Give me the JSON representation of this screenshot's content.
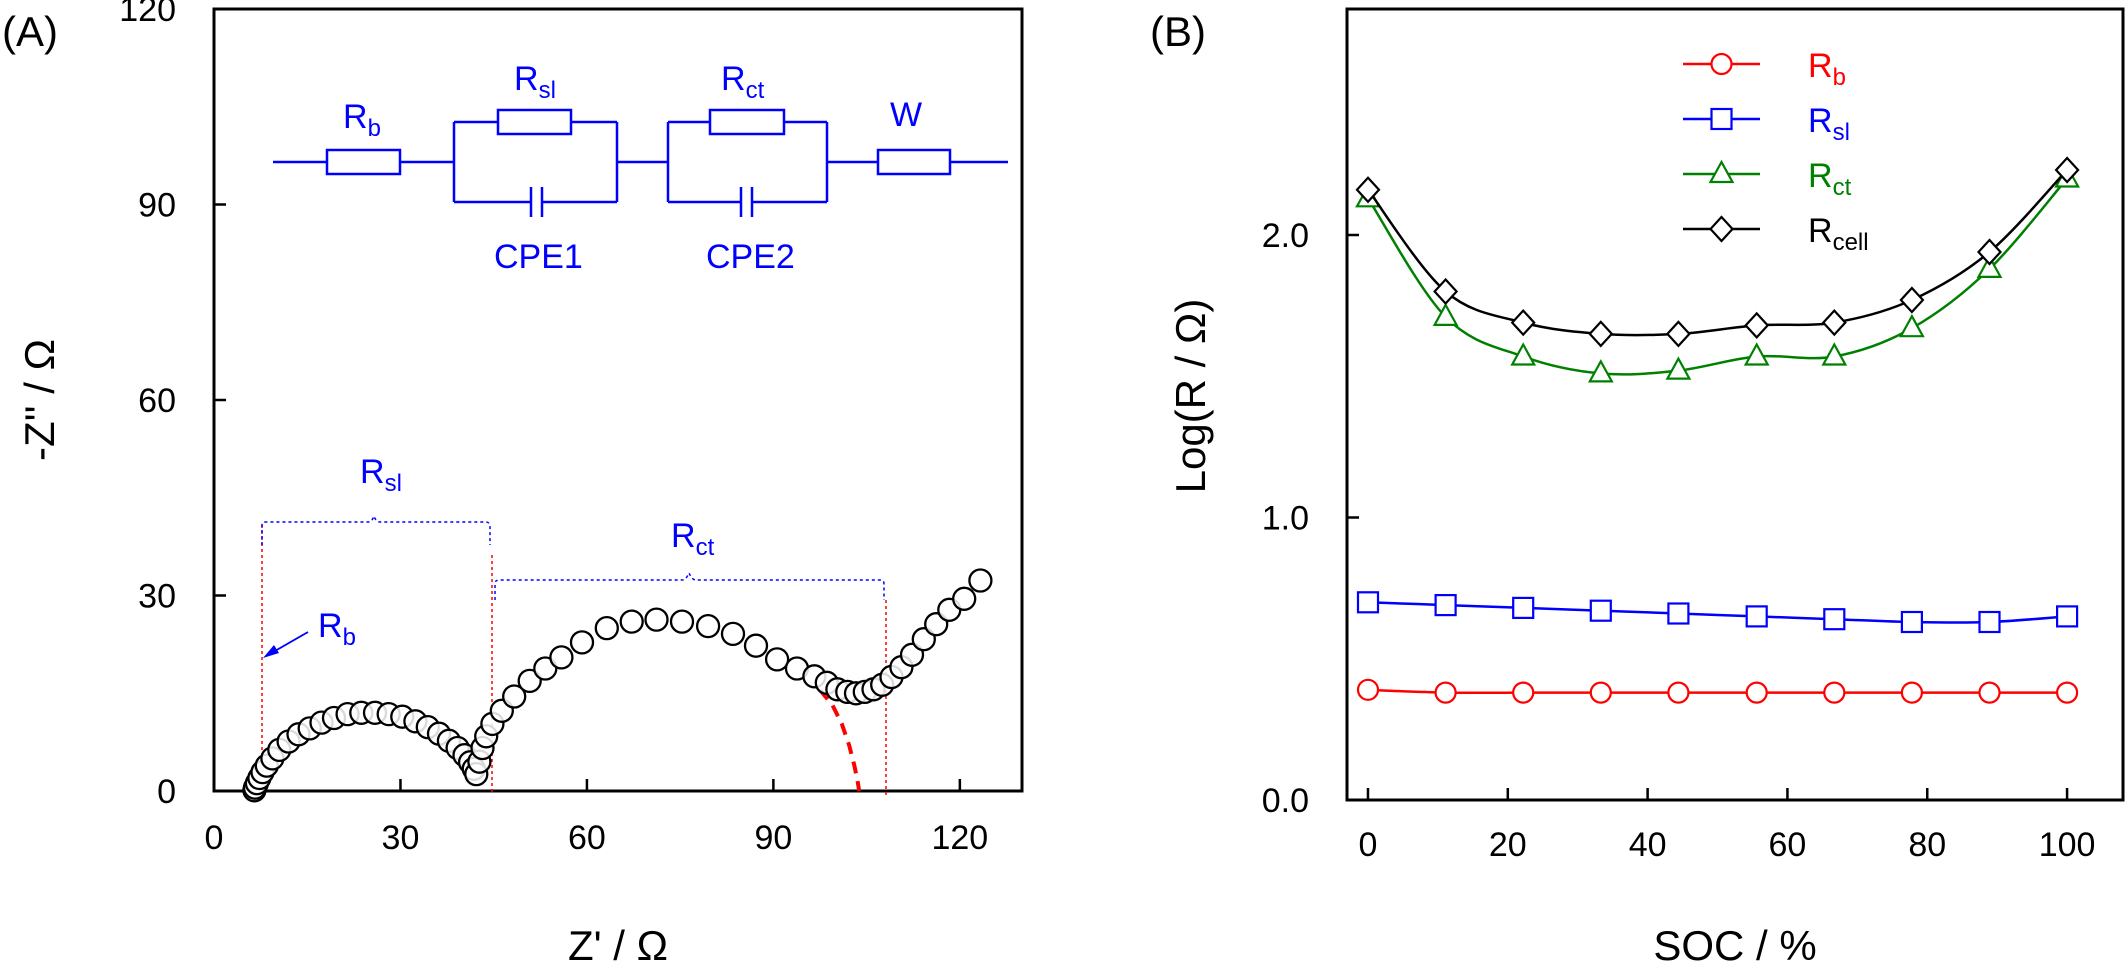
{
  "panels": [
    {
      "label": "(A)"
    },
    {
      "label": "(B)"
    }
  ],
  "colors": {
    "black": "#000000",
    "red": "#ff0000",
    "blue": "#0000ff",
    "green": "#008000",
    "marker_fill": "#ffffff"
  },
  "circuit": {
    "elements": [
      {
        "base": "R",
        "sub": "b"
      },
      {
        "base": "R",
        "sub": "sl"
      },
      {
        "base": "R",
        "sub": "ct"
      },
      {
        "base": "W",
        "sub": ""
      }
    ],
    "cpe1": "CPE1",
    "cpe2": "CPE2"
  },
  "annotations": {
    "rsl": {
      "base": "R",
      "sub": "sl"
    },
    "rct": {
      "base": "R",
      "sub": "ct"
    },
    "rb": {
      "base": "R",
      "sub": "b"
    }
  },
  "chart_data": [
    {
      "type": "scatter",
      "xlabel": "Z' / Ω",
      "ylabel": "-Z'' / Ω",
      "xlim": [
        0,
        130
      ],
      "ylim": [
        0,
        120
      ],
      "xticks": [
        0,
        30,
        60,
        90,
        120
      ],
      "yticks": [
        0,
        30,
        60,
        90,
        120
      ],
      "grid": false,
      "series": [
        {
          "marker": "open-circle",
          "color": "#000000",
          "points": [
            [
              6.5,
              0.1
            ],
            [
              6.6,
              0.5
            ],
            [
              6.9,
              1.2
            ],
            [
              7.3,
              2.0
            ],
            [
              7.8,
              2.9
            ],
            [
              8.5,
              3.9
            ],
            [
              9.4,
              5.0
            ],
            [
              10.5,
              6.3
            ],
            [
              12.0,
              7.6
            ],
            [
              13.6,
              8.7
            ],
            [
              15.4,
              9.6
            ],
            [
              17.3,
              10.5
            ],
            [
              19.3,
              11.2
            ],
            [
              21.5,
              11.8
            ],
            [
              23.7,
              12.0
            ],
            [
              25.9,
              12.0
            ],
            [
              28.1,
              11.8
            ],
            [
              30.3,
              11.4
            ],
            [
              32.4,
              10.7
            ],
            [
              34.4,
              9.8
            ],
            [
              36.2,
              8.8
            ],
            [
              37.8,
              7.7
            ],
            [
              39.2,
              6.6
            ],
            [
              40.3,
              5.5
            ],
            [
              41.2,
              4.4
            ],
            [
              41.8,
              3.4
            ],
            [
              42.2,
              2.6
            ],
            [
              42.7,
              4.5
            ],
            [
              43.2,
              6.6
            ],
            [
              43.8,
              8.4
            ],
            [
              44.8,
              10.3
            ],
            [
              46.3,
              12.3
            ],
            [
              48.3,
              14.5
            ],
            [
              50.8,
              16.9
            ],
            [
              53.3,
              18.8
            ],
            [
              55.9,
              20.5
            ],
            [
              59.2,
              22.8
            ],
            [
              63.2,
              25.0
            ],
            [
              67.2,
              26.0
            ],
            [
              71.2,
              26.3
            ],
            [
              75.3,
              26.0
            ],
            [
              79.5,
              25.3
            ],
            [
              83.5,
              24.1
            ],
            [
              87.2,
              22.3
            ],
            [
              90.6,
              20.2
            ],
            [
              93.8,
              18.8
            ],
            [
              96.6,
              17.6
            ],
            [
              98.6,
              16.6
            ],
            [
              100.3,
              15.6
            ],
            [
              101.9,
              15.2
            ],
            [
              103.3,
              15.0
            ],
            [
              104.7,
              15.2
            ],
            [
              106.1,
              15.6
            ],
            [
              107.5,
              16.3
            ],
            [
              109.0,
              17.5
            ],
            [
              110.6,
              19.0
            ],
            [
              112.3,
              20.9
            ],
            [
              114.2,
              23.3
            ],
            [
              116.2,
              25.6
            ],
            [
              118.3,
              27.8
            ],
            [
              120.7,
              29.5
            ],
            [
              123.3,
              32.3
            ]
          ]
        }
      ],
      "fit_curve": {
        "color": "#ff0000",
        "style": "dashed",
        "points": [
          [
            97.5,
            15.5
          ],
          [
            99.5,
            13.2
          ],
          [
            101,
            10.3
          ],
          [
            102.2,
            7.0
          ],
          [
            103.0,
            4.0
          ],
          [
            103.5,
            1.8
          ],
          [
            103.8,
            0.0
          ]
        ]
      }
    },
    {
      "type": "line",
      "xlabel": "SOC / %",
      "ylabel": "Log(R / Ω)",
      "xlim": [
        -3,
        108
      ],
      "ylim": [
        0.0,
        2.8
      ],
      "xticks": [
        0,
        20,
        40,
        60,
        80,
        100
      ],
      "yticks": [
        0.0,
        1.0,
        2.0
      ],
      "ytick_labels": [
        "0.0",
        "1.0",
        "2.0"
      ],
      "grid": false,
      "legend_position": "top-center",
      "x": [
        0,
        11.1,
        22.2,
        33.3,
        44.4,
        55.6,
        66.7,
        77.8,
        88.9,
        100
      ],
      "series": [
        {
          "name": {
            "base": "R",
            "sub": "b"
          },
          "color": "#ff0000",
          "marker": "circle",
          "values": [
            0.39,
            0.38,
            0.38,
            0.38,
            0.38,
            0.38,
            0.38,
            0.38,
            0.38,
            0.38
          ]
        },
        {
          "name": {
            "base": "R",
            "sub": "sl"
          },
          "color": "#0000ff",
          "marker": "square",
          "values": [
            0.7,
            0.69,
            0.68,
            0.67,
            0.66,
            0.65,
            0.64,
            0.63,
            0.63,
            0.65
          ]
        },
        {
          "name": {
            "base": "R",
            "sub": "ct"
          },
          "color": "#008000",
          "marker": "triangle",
          "values": [
            2.13,
            1.71,
            1.57,
            1.51,
            1.52,
            1.57,
            1.57,
            1.67,
            1.88,
            2.2
          ]
        },
        {
          "name": {
            "base": "R",
            "sub": "cell"
          },
          "color": "#000000",
          "marker": "diamond",
          "values": [
            2.16,
            1.8,
            1.69,
            1.65,
            1.65,
            1.68,
            1.69,
            1.77,
            1.94,
            2.23
          ]
        }
      ]
    }
  ]
}
